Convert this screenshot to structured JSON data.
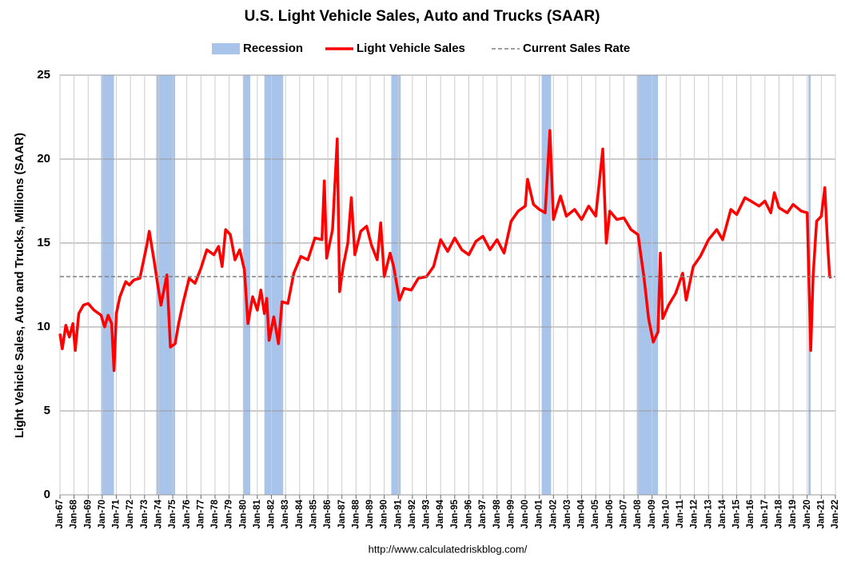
{
  "chart_data": {
    "type": "line",
    "title": "U.S. Light Vehicle Sales, Auto and Trucks (SAAR)",
    "y_label": "Light Vehicle Sales, Auto and Trucks, Millions (SAAR)",
    "source": "http://www.calculatedriskblog.com/",
    "grid": true,
    "legend": "top",
    "ylim": [
      0,
      25
    ],
    "yticks": [
      0,
      5,
      10,
      15,
      20,
      25
    ],
    "xlim": [
      "1967-01",
      "2022-01"
    ],
    "xticks": [
      {
        "value": "1967-01",
        "label": "Jan-67"
      },
      {
        "value": "1968-01",
        "label": "Jan-68"
      },
      {
        "value": "1969-01",
        "label": "Jan-69"
      },
      {
        "value": "1970-01",
        "label": "Jan-70"
      },
      {
        "value": "1971-01",
        "label": "Jan-71"
      },
      {
        "value": "1972-01",
        "label": "Jan-72"
      },
      {
        "value": "1973-01",
        "label": "Jan-73"
      },
      {
        "value": "1974-01",
        "label": "Jan-74"
      },
      {
        "value": "1975-01",
        "label": "Jan-75"
      },
      {
        "value": "1976-01",
        "label": "Jan-76"
      },
      {
        "value": "1977-01",
        "label": "Jan-77"
      },
      {
        "value": "1978-01",
        "label": "Jan-78"
      },
      {
        "value": "1979-01",
        "label": "Jan-79"
      },
      {
        "value": "1980-01",
        "label": "Jan-80"
      },
      {
        "value": "1981-01",
        "label": "Jan-81"
      },
      {
        "value": "1982-01",
        "label": "Jan-82"
      },
      {
        "value": "1983-01",
        "label": "Jan-83"
      },
      {
        "value": "1984-01",
        "label": "Jan-84"
      },
      {
        "value": "1985-01",
        "label": "Jan-85"
      },
      {
        "value": "1986-01",
        "label": "Jan-86"
      },
      {
        "value": "1987-01",
        "label": "Jan-87"
      },
      {
        "value": "1988-01",
        "label": "Jan-88"
      },
      {
        "value": "1989-01",
        "label": "Jan-89"
      },
      {
        "value": "1990-01",
        "label": "Jan-90"
      },
      {
        "value": "1991-01",
        "label": "Jan-91"
      },
      {
        "value": "1992-01",
        "label": "Jan-92"
      },
      {
        "value": "1993-01",
        "label": "Jan-93"
      },
      {
        "value": "1994-01",
        "label": "Jan-94"
      },
      {
        "value": "1995-01",
        "label": "Jan-95"
      },
      {
        "value": "1996-01",
        "label": "Jan-96"
      },
      {
        "value": "1997-01",
        "label": "Jan-97"
      },
      {
        "value": "1998-01",
        "label": "Jan-98"
      },
      {
        "value": "1999-01",
        "label": "Jan-99"
      },
      {
        "value": "2000-01",
        "label": "Jan-00"
      },
      {
        "value": "2001-01",
        "label": "Jan-01"
      },
      {
        "value": "2002-01",
        "label": "Jan-02"
      },
      {
        "value": "2003-01",
        "label": "Jan-03"
      },
      {
        "value": "2004-01",
        "label": "Jan-04"
      },
      {
        "value": "2005-01",
        "label": "Jan-05"
      },
      {
        "value": "2006-01",
        "label": "Jan-06"
      },
      {
        "value": "2007-01",
        "label": "Jan-07"
      },
      {
        "value": "2008-01",
        "label": "Jan-08"
      },
      {
        "value": "2009-01",
        "label": "Jan-09"
      },
      {
        "value": "2010-01",
        "label": "Jan-10"
      },
      {
        "value": "2011-01",
        "label": "Jan-11"
      },
      {
        "value": "2012-01",
        "label": "Jan-12"
      },
      {
        "value": "2013-01",
        "label": "Jan-13"
      },
      {
        "value": "2014-01",
        "label": "Jan-14"
      },
      {
        "value": "2015-01",
        "label": "Jan-15"
      },
      {
        "value": "2016-01",
        "label": "Jan-16"
      },
      {
        "value": "2017-01",
        "label": "Jan-17"
      },
      {
        "value": "2018-01",
        "label": "Jan-18"
      },
      {
        "value": "2019-01",
        "label": "Jan-19"
      },
      {
        "value": "2020-01",
        "label": "Jan-20"
      },
      {
        "value": "2021-01",
        "label": "Jan-21"
      },
      {
        "value": "2022-01",
        "label": "Jan-22"
      }
    ],
    "series": [
      {
        "name": "Recession",
        "color": "#a9c4eb",
        "style": "band",
        "periods": [
          [
            "1969-12",
            "1970-11"
          ],
          [
            "1973-11",
            "1975-03"
          ],
          [
            "1980-01",
            "1980-07"
          ],
          [
            "1981-07",
            "1982-11"
          ],
          [
            "1990-07",
            "1991-03"
          ],
          [
            "2001-03",
            "2001-11"
          ],
          [
            "2007-12",
            "2009-06"
          ],
          [
            "2020-02",
            "2020-04"
          ]
        ]
      },
      {
        "name": "Light Vehicle Sales",
        "color": "#ff0000",
        "style": "line",
        "x": [
          "1967-01",
          "1967-03",
          "1967-06",
          "1967-09",
          "1967-12",
          "1968-02",
          "1968-05",
          "1968-09",
          "1969-01",
          "1969-06",
          "1969-12",
          "1970-03",
          "1970-06",
          "1970-09",
          "1970-11",
          "1971-01",
          "1971-04",
          "1971-09",
          "1971-12",
          "1972-04",
          "1972-09",
          "1973-03",
          "1973-05",
          "1973-09",
          "1973-12",
          "1974-03",
          "1974-08",
          "1974-11",
          "1975-03",
          "1975-06",
          "1975-10",
          "1976-03",
          "1976-08",
          "1977-01",
          "1977-06",
          "1977-12",
          "1978-04",
          "1978-07",
          "1978-10",
          "1979-02",
          "1979-06",
          "1979-10",
          "1980-02",
          "1980-05",
          "1980-09",
          "1981-01",
          "1981-04",
          "1981-07",
          "1981-09",
          "1981-11",
          "1982-03",
          "1982-07",
          "1982-10",
          "1983-03",
          "1983-08",
          "1984-02",
          "1984-08",
          "1985-02",
          "1985-08",
          "1985-10",
          "1985-12",
          "1986-05",
          "1986-09",
          "1986-11",
          "1987-02",
          "1987-06",
          "1987-09",
          "1987-12",
          "1988-05",
          "1988-10",
          "1989-02",
          "1989-07",
          "1989-10",
          "1990-01",
          "1990-06",
          "1990-09",
          "1991-02",
          "1991-06",
          "1991-12",
          "1992-06",
          "1993-01",
          "1993-07",
          "1994-01",
          "1994-07",
          "1995-01",
          "1995-07",
          "1996-01",
          "1996-07",
          "1997-01",
          "1997-07",
          "1998-01",
          "1998-07",
          "1999-01",
          "1999-07",
          "2000-01",
          "2000-03",
          "2000-08",
          "2001-01",
          "2001-06",
          "2001-10",
          "2002-01",
          "2002-07",
          "2002-12",
          "2003-07",
          "2004-01",
          "2004-07",
          "2005-01",
          "2005-07",
          "2005-10",
          "2006-01",
          "2006-07",
          "2007-01",
          "2007-07",
          "2008-01",
          "2008-06",
          "2008-10",
          "2009-02",
          "2009-06",
          "2009-08",
          "2009-10",
          "2010-03",
          "2010-09",
          "2011-03",
          "2011-06",
          "2011-12",
          "2012-06",
          "2013-01",
          "2013-08",
          "2014-01",
          "2014-08",
          "2015-01",
          "2015-08",
          "2016-01",
          "2016-08",
          "2017-01",
          "2017-06",
          "2017-09",
          "2018-01",
          "2018-08",
          "2019-01",
          "2019-08",
          "2020-01",
          "2020-03",
          "2020-04",
          "2020-06",
          "2020-09",
          "2021-01",
          "2021-04",
          "2021-06",
          "2021-08",
          "2021-09"
        ],
        "values": [
          9.6,
          8.7,
          10.1,
          9.4,
          10.2,
          8.6,
          10.8,
          11.3,
          11.4,
          11.0,
          10.7,
          10.0,
          10.7,
          10.2,
          7.4,
          10.8,
          11.8,
          12.7,
          12.5,
          12.8,
          12.9,
          14.9,
          15.7,
          14.0,
          12.6,
          11.3,
          13.1,
          8.8,
          9.0,
          10.2,
          11.5,
          12.9,
          12.6,
          13.5,
          14.6,
          14.3,
          14.8,
          13.6,
          15.8,
          15.5,
          14.0,
          14.6,
          13.4,
          10.2,
          11.8,
          11.0,
          12.2,
          10.8,
          11.7,
          9.2,
          10.6,
          9.0,
          11.5,
          11.4,
          13.2,
          14.2,
          14.0,
          15.3,
          15.2,
          18.7,
          14.1,
          15.8,
          21.2,
          12.1,
          13.6,
          15.0,
          17.7,
          14.3,
          15.7,
          16.0,
          14.9,
          14.0,
          16.2,
          13.0,
          14.4,
          13.6,
          11.6,
          12.3,
          12.2,
          12.9,
          13.0,
          13.6,
          15.2,
          14.5,
          15.3,
          14.6,
          14.3,
          15.1,
          15.4,
          14.6,
          15.2,
          14.4,
          16.3,
          16.9,
          17.2,
          18.8,
          17.3,
          17.0,
          16.8,
          21.7,
          16.4,
          17.8,
          16.6,
          17.0,
          16.4,
          17.2,
          16.6,
          20.6,
          15.0,
          16.9,
          16.4,
          16.5,
          15.8,
          15.5,
          13.0,
          10.5,
          9.1,
          9.7,
          14.4,
          10.5,
          11.3,
          12.0,
          13.2,
          11.6,
          13.6,
          14.2,
          15.2,
          15.8,
          15.2,
          17.0,
          16.7,
          17.7,
          17.5,
          17.2,
          17.5,
          16.8,
          18.0,
          17.1,
          16.8,
          17.3,
          16.9,
          16.8,
          11.4,
          8.6,
          13.0,
          16.3,
          16.6,
          18.3,
          15.4,
          13.1,
          12.9
        ]
      },
      {
        "name": "Current Sales Rate",
        "color": "#808080",
        "style": "hline",
        "value": 13
      }
    ]
  }
}
